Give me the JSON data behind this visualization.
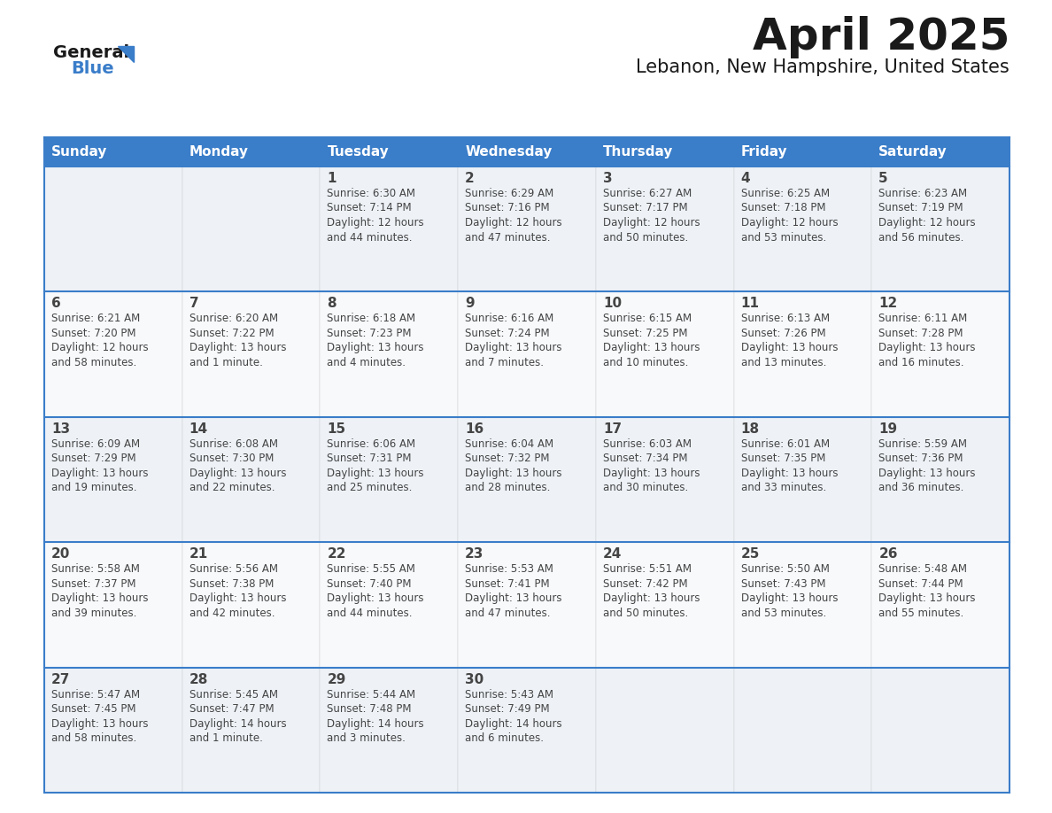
{
  "title": "April 2025",
  "subtitle": "Lebanon, New Hampshire, United States",
  "header_color": "#3a7dc9",
  "header_text_color": "#ffffff",
  "row_odd_color": "#eef2f7",
  "row_even_color": "#f7f9fb",
  "border_color": "#3a7dc9",
  "text_color": "#444444",
  "days_of_week": [
    "Sunday",
    "Monday",
    "Tuesday",
    "Wednesday",
    "Thursday",
    "Friday",
    "Saturday"
  ],
  "weeks": [
    [
      {
        "day": "",
        "info": ""
      },
      {
        "day": "",
        "info": ""
      },
      {
        "day": "1",
        "info": "Sunrise: 6:30 AM\nSunset: 7:14 PM\nDaylight: 12 hours\nand 44 minutes."
      },
      {
        "day": "2",
        "info": "Sunrise: 6:29 AM\nSunset: 7:16 PM\nDaylight: 12 hours\nand 47 minutes."
      },
      {
        "day": "3",
        "info": "Sunrise: 6:27 AM\nSunset: 7:17 PM\nDaylight: 12 hours\nand 50 minutes."
      },
      {
        "day": "4",
        "info": "Sunrise: 6:25 AM\nSunset: 7:18 PM\nDaylight: 12 hours\nand 53 minutes."
      },
      {
        "day": "5",
        "info": "Sunrise: 6:23 AM\nSunset: 7:19 PM\nDaylight: 12 hours\nand 56 minutes."
      }
    ],
    [
      {
        "day": "6",
        "info": "Sunrise: 6:21 AM\nSunset: 7:20 PM\nDaylight: 12 hours\nand 58 minutes."
      },
      {
        "day": "7",
        "info": "Sunrise: 6:20 AM\nSunset: 7:22 PM\nDaylight: 13 hours\nand 1 minute."
      },
      {
        "day": "8",
        "info": "Sunrise: 6:18 AM\nSunset: 7:23 PM\nDaylight: 13 hours\nand 4 minutes."
      },
      {
        "day": "9",
        "info": "Sunrise: 6:16 AM\nSunset: 7:24 PM\nDaylight: 13 hours\nand 7 minutes."
      },
      {
        "day": "10",
        "info": "Sunrise: 6:15 AM\nSunset: 7:25 PM\nDaylight: 13 hours\nand 10 minutes."
      },
      {
        "day": "11",
        "info": "Sunrise: 6:13 AM\nSunset: 7:26 PM\nDaylight: 13 hours\nand 13 minutes."
      },
      {
        "day": "12",
        "info": "Sunrise: 6:11 AM\nSunset: 7:28 PM\nDaylight: 13 hours\nand 16 minutes."
      }
    ],
    [
      {
        "day": "13",
        "info": "Sunrise: 6:09 AM\nSunset: 7:29 PM\nDaylight: 13 hours\nand 19 minutes."
      },
      {
        "day": "14",
        "info": "Sunrise: 6:08 AM\nSunset: 7:30 PM\nDaylight: 13 hours\nand 22 minutes."
      },
      {
        "day": "15",
        "info": "Sunrise: 6:06 AM\nSunset: 7:31 PM\nDaylight: 13 hours\nand 25 minutes."
      },
      {
        "day": "16",
        "info": "Sunrise: 6:04 AM\nSunset: 7:32 PM\nDaylight: 13 hours\nand 28 minutes."
      },
      {
        "day": "17",
        "info": "Sunrise: 6:03 AM\nSunset: 7:34 PM\nDaylight: 13 hours\nand 30 minutes."
      },
      {
        "day": "18",
        "info": "Sunrise: 6:01 AM\nSunset: 7:35 PM\nDaylight: 13 hours\nand 33 minutes."
      },
      {
        "day": "19",
        "info": "Sunrise: 5:59 AM\nSunset: 7:36 PM\nDaylight: 13 hours\nand 36 minutes."
      }
    ],
    [
      {
        "day": "20",
        "info": "Sunrise: 5:58 AM\nSunset: 7:37 PM\nDaylight: 13 hours\nand 39 minutes."
      },
      {
        "day": "21",
        "info": "Sunrise: 5:56 AM\nSunset: 7:38 PM\nDaylight: 13 hours\nand 42 minutes."
      },
      {
        "day": "22",
        "info": "Sunrise: 5:55 AM\nSunset: 7:40 PM\nDaylight: 13 hours\nand 44 minutes."
      },
      {
        "day": "23",
        "info": "Sunrise: 5:53 AM\nSunset: 7:41 PM\nDaylight: 13 hours\nand 47 minutes."
      },
      {
        "day": "24",
        "info": "Sunrise: 5:51 AM\nSunset: 7:42 PM\nDaylight: 13 hours\nand 50 minutes."
      },
      {
        "day": "25",
        "info": "Sunrise: 5:50 AM\nSunset: 7:43 PM\nDaylight: 13 hours\nand 53 minutes."
      },
      {
        "day": "26",
        "info": "Sunrise: 5:48 AM\nSunset: 7:44 PM\nDaylight: 13 hours\nand 55 minutes."
      }
    ],
    [
      {
        "day": "27",
        "info": "Sunrise: 5:47 AM\nSunset: 7:45 PM\nDaylight: 13 hours\nand 58 minutes."
      },
      {
        "day": "28",
        "info": "Sunrise: 5:45 AM\nSunset: 7:47 PM\nDaylight: 14 hours\nand 1 minute."
      },
      {
        "day": "29",
        "info": "Sunrise: 5:44 AM\nSunset: 7:48 PM\nDaylight: 14 hours\nand 3 minutes."
      },
      {
        "day": "30",
        "info": "Sunrise: 5:43 AM\nSunset: 7:49 PM\nDaylight: 14 hours\nand 6 minutes."
      },
      {
        "day": "",
        "info": ""
      },
      {
        "day": "",
        "info": ""
      },
      {
        "day": "",
        "info": ""
      }
    ]
  ]
}
